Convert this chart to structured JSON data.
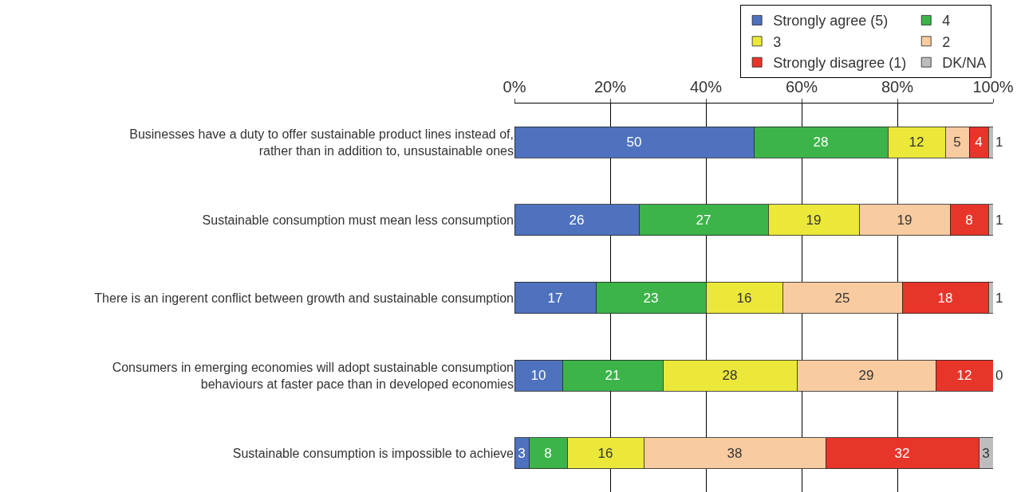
{
  "chart_data": {
    "type": "bar",
    "orientation": "horizontal",
    "stacked": true,
    "data_labels": true,
    "legend": "top right",
    "grid": "x",
    "categories": [
      "Businesses have a duty to offer sustainable product lines instead of, rather than in addition to, unsustainable ones",
      "Sustainable consumption must mean less consumption",
      "There is an ingerent conflict between growth and sustainable consumption",
      "Consumers in emerging economies will adopt sustainable consumption behaviours at faster pace than in developed economies",
      "Sustainable consumption is impossible to achieve"
    ],
    "series": [
      {
        "name": "Strongly agree (5)",
        "color": "#4f72be",
        "values": [
          50,
          26,
          17,
          10,
          3
        ]
      },
      {
        "name": "4",
        "color": "#3cb44a",
        "values": [
          28,
          27,
          23,
          21,
          8
        ]
      },
      {
        "name": "3",
        "color": "#ebe83a",
        "values": [
          12,
          19,
          16,
          28,
          16
        ]
      },
      {
        "name": "2",
        "color": "#f9cba0",
        "values": [
          5,
          19,
          25,
          29,
          38
        ]
      },
      {
        "name": "Strongly disagree (1)",
        "color": "#e8352a",
        "values": [
          4,
          8,
          18,
          12,
          32
        ]
      },
      {
        "name": "DK/NA",
        "color": "#bdbdbd",
        "values": [
          1,
          1,
          1,
          0,
          3
        ]
      }
    ],
    "xlim": [
      0,
      100
    ],
    "xticks": [
      {
        "value": 0,
        "label": "0%"
      },
      {
        "value": 20,
        "label": "20%"
      },
      {
        "value": 40,
        "label": "40%"
      },
      {
        "value": 60,
        "label": "60%"
      },
      {
        "value": 80,
        "label": "80%"
      },
      {
        "value": 100,
        "label": "100%"
      }
    ]
  }
}
